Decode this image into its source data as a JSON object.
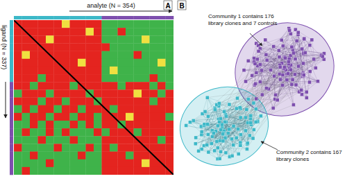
{
  "chart_data": {
    "type": "heatmap",
    "title": "A",
    "x_label": "analyte (N = 354)",
    "y_label": "ligand (N = 337)",
    "tick_labels": false,
    "colors": [
      "#3fb34a",
      "#f0e040",
      "#e4241f"
    ],
    "row_community": [
      2,
      2,
      2,
      2,
      2,
      2,
      2,
      2,
      1,
      1,
      1,
      1,
      1,
      1,
      1,
      1,
      1,
      1,
      1,
      1
    ],
    "column_community": [
      2,
      2,
      2,
      2,
      2,
      2,
      2,
      2,
      2,
      2,
      2,
      1,
      1,
      1,
      1,
      1,
      1,
      1,
      1,
      1
    ],
    "cells": [
      [
        2,
        2,
        2,
        2,
        2,
        2,
        1,
        2,
        2,
        2,
        2,
        0,
        0,
        0,
        0,
        0,
        0,
        0,
        0,
        0
      ],
      [
        2,
        2,
        2,
        2,
        2,
        2,
        2,
        2,
        2,
        1,
        2,
        0,
        0,
        2,
        0,
        0,
        0,
        0,
        0,
        0
      ],
      [
        2,
        2,
        2,
        2,
        1,
        2,
        2,
        2,
        2,
        2,
        2,
        0,
        0,
        0,
        0,
        0,
        1,
        0,
        0,
        0
      ],
      [
        2,
        2,
        2,
        2,
        2,
        2,
        2,
        2,
        2,
        2,
        2,
        2,
        0,
        0,
        0,
        0,
        0,
        0,
        0,
        0
      ],
      [
        2,
        1,
        2,
        2,
        2,
        2,
        2,
        2,
        2,
        2,
        2,
        0,
        0,
        0,
        0,
        2,
        0,
        0,
        0,
        0
      ],
      [
        2,
        2,
        2,
        2,
        2,
        2,
        2,
        2,
        1,
        2,
        2,
        0,
        0,
        0,
        0,
        0,
        0,
        0,
        1,
        0
      ],
      [
        2,
        2,
        2,
        2,
        2,
        2,
        2,
        2,
        2,
        2,
        2,
        0,
        1,
        0,
        0,
        0,
        0,
        0,
        0,
        0
      ],
      [
        2,
        2,
        2,
        0,
        2,
        2,
        2,
        2,
        2,
        2,
        2,
        0,
        0,
        0,
        0,
        0,
        0,
        2,
        0,
        0
      ],
      [
        2,
        2,
        0,
        2,
        2,
        2,
        2,
        0,
        2,
        2,
        2,
        2,
        2,
        0,
        2,
        2,
        2,
        0,
        2,
        0
      ],
      [
        0,
        2,
        2,
        2,
        0,
        2,
        2,
        2,
        2,
        0,
        2,
        2,
        2,
        2,
        2,
        1,
        2,
        2,
        0,
        2
      ],
      [
        2,
        2,
        2,
        0,
        2,
        2,
        0,
        2,
        2,
        2,
        0,
        2,
        2,
        2,
        2,
        2,
        2,
        0,
        2,
        2
      ],
      [
        0,
        2,
        0,
        2,
        2,
        0,
        2,
        2,
        0,
        2,
        2,
        2,
        0,
        2,
        2,
        2,
        2,
        2,
        2,
        2
      ],
      [
        2,
        0,
        2,
        2,
        0,
        2,
        2,
        0,
        2,
        2,
        0,
        2,
        2,
        2,
        1,
        2,
        2,
        2,
        2,
        0
      ],
      [
        0,
        0,
        2,
        0,
        2,
        0,
        0,
        2,
        0,
        2,
        0,
        2,
        2,
        0,
        2,
        2,
        2,
        2,
        2,
        2
      ],
      [
        0,
        2,
        0,
        0,
        2,
        0,
        2,
        0,
        0,
        0,
        2,
        0,
        2,
        2,
        2,
        0,
        2,
        2,
        2,
        2
      ],
      [
        0,
        0,
        0,
        2,
        0,
        0,
        0,
        2,
        0,
        0,
        0,
        2,
        2,
        2,
        2,
        2,
        2,
        2,
        0,
        2
      ],
      [
        2,
        0,
        0,
        0,
        0,
        2,
        0,
        0,
        0,
        2,
        0,
        2,
        0,
        2,
        2,
        2,
        2,
        2,
        2,
        2
      ],
      [
        0,
        0,
        2,
        0,
        0,
        0,
        0,
        0,
        2,
        0,
        0,
        2,
        2,
        2,
        0,
        2,
        2,
        2,
        2,
        2
      ],
      [
        0,
        0,
        0,
        0,
        2,
        0,
        0,
        0,
        0,
        0,
        0,
        2,
        2,
        2,
        2,
        2,
        1,
        2,
        2,
        2
      ],
      [
        0,
        2,
        0,
        0,
        0,
        0,
        0,
        0,
        0,
        0,
        0,
        2,
        2,
        2,
        2,
        2,
        2,
        2,
        2,
        2
      ]
    ]
  },
  "network": {
    "title": "B",
    "communities": [
      {
        "lines": [
          "Community 1 contains 176",
          "library clones and 7 controls"
        ],
        "color": "#7d4fae"
      },
      {
        "lines": [
          "Community 2  contains 167",
          "library clones"
        ],
        "color": "#3db8c8"
      }
    ]
  }
}
